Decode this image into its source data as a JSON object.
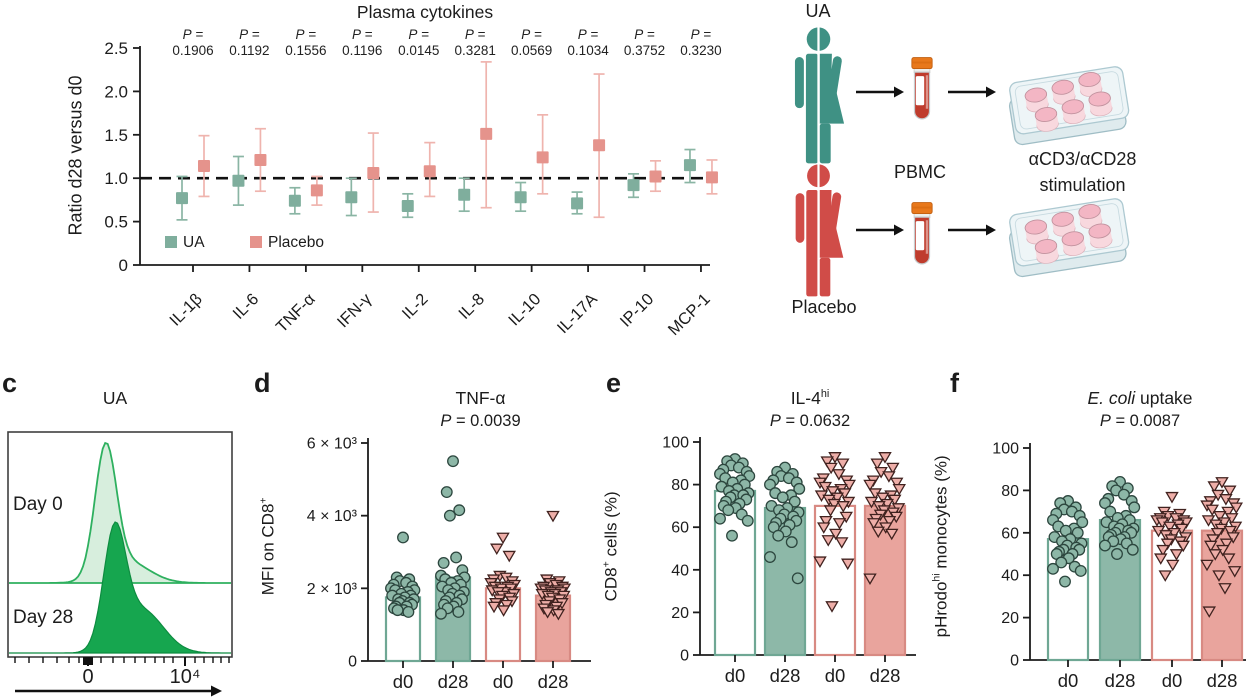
{
  "colors": {
    "ua": "#7fae9d",
    "ua_err": "#8ab5a4",
    "placebo": "#e5938c",
    "placebo_err": "#efb4ae",
    "ua_bar": "#8db8a8",
    "ua_bar_stroke": "#6fa794",
    "pl_bar": "#e9a49d",
    "pl_bar_stroke": "#d88a83",
    "ua_dot": "#8db7a7",
    "ua_dot_stroke": "#2c463e",
    "pl_dot": "#eeaea8",
    "pl_dot_stroke": "#40221f",
    "hist_day0_fill": "#d7eedd",
    "hist_day0_stroke": "#2eb05f",
    "hist_day28_fill": "#16a64f",
    "hist_day28_stroke": "#0d8c40",
    "person_ua": "#3f9184",
    "person_placebo": "#d04c48"
  },
  "panel_b": {
    "ua_label": "UA",
    "pbmc_label": "PBMC",
    "stim_line1": "αCD3/αCD28",
    "stim_line2": "stimulation",
    "placebo_label": "Placebo"
  },
  "chart_data": {
    "plasma": {
      "type": "pointrange",
      "title": "Plasma cytokines",
      "ylabel": "Ratio d28 versus d0",
      "ylim": [
        0,
        2.5
      ],
      "ref_line": 1.0,
      "yticks": {
        "values": [
          0,
          0.5,
          1,
          1.5,
          2,
          2.5
        ],
        "labels": [
          "0",
          "0.5",
          "1.0",
          "1.5",
          "2.0",
          "2.5"
        ]
      },
      "categories": [
        "IL-1β",
        "IL-6",
        "TNF-α",
        "IFN-γ",
        "IL-2",
        "IL-8",
        "IL-10",
        "IL-17A",
        "IP-10",
        "MCP-1"
      ],
      "p_values": [
        "0.1906",
        "0.1192",
        "0.1556",
        "0.1196",
        "0.0145",
        "0.3281",
        "0.0569",
        "0.1034",
        "0.3752",
        "0.3230"
      ],
      "series": [
        {
          "name": "UA",
          "mean": [
            0.77,
            0.97,
            0.74,
            0.78,
            0.68,
            0.81,
            0.78,
            0.71,
            0.92,
            1.15
          ],
          "lo": [
            0.52,
            0.69,
            0.59,
            0.57,
            0.55,
            0.62,
            0.62,
            0.59,
            0.78,
            0.95
          ],
          "hi": [
            1.02,
            1.25,
            0.89,
            1.0,
            0.82,
            1.0,
            0.95,
            0.84,
            1.05,
            1.33
          ]
        },
        {
          "name": "Placebo",
          "mean": [
            1.14,
            1.21,
            0.86,
            1.06,
            1.08,
            1.51,
            1.24,
            1.38,
            1.02,
            1.01
          ],
          "lo": [
            0.79,
            0.85,
            0.69,
            0.61,
            0.79,
            0.66,
            0.82,
            0.55,
            0.85,
            0.82
          ],
          "hi": [
            1.49,
            1.57,
            1.02,
            1.52,
            1.41,
            2.34,
            1.73,
            2.2,
            1.2,
            1.21
          ]
        }
      ]
    },
    "histogram": {
      "type": "histogram-overlay",
      "letter": "c",
      "title": "UA",
      "series": [
        {
          "name": "Day 0"
        },
        {
          "name": "Day 28"
        }
      ],
      "xticks": [
        "0",
        "10⁴"
      ]
    },
    "panels": {
      "d": {
        "type": "bar-scatter",
        "letter": "d",
        "title_pre": "TNF-α",
        "p_symbol": "P",
        "p_rest": " = 0.0039",
        "ylabel_pre": "MFI on CD8",
        "ylabel_sup": "+",
        "ylabel_post": "",
        "ylim": [
          0,
          6000
        ],
        "yticks": {
          "values": [
            0,
            2000,
            4000,
            6000
          ],
          "labels": [
            "0",
            "2 × 10³",
            "4 × 10³",
            "6 × 10³"
          ]
        },
        "categories": [
          "d0",
          "d28",
          "d0",
          "d28"
        ],
        "bars": [
          1750,
          2300,
          2000,
          1800
        ],
        "groups": [
          {
            "group": "UA d0",
            "style": "ua-open",
            "dots": [
              3400,
              2300,
              2250,
              2200,
              2150,
              2100,
              2050,
              2000,
              1950,
              1950,
              1900,
              1850,
              1800,
              1800,
              1750,
              1700,
              1700,
              1650,
              1600,
              1600,
              1550,
              1500,
              1500,
              1450,
              1400,
              1400,
              1350
            ]
          },
          {
            "group": "UA d28",
            "style": "ua-fill",
            "dots": [
              5500,
              4650,
              4150,
              4000,
              2850,
              2700,
              2500,
              2350,
              2300,
              2250,
              2200,
              2150,
              2100,
              2050,
              2000,
              1950,
              1900,
              1850,
              1800,
              1750,
              1700,
              1650,
              1600,
              1550,
              1500,
              1450,
              1350,
              1300
            ]
          },
          {
            "group": "Placebo d0",
            "style": "pl-open",
            "dots": [
              3400,
              3100,
              2900,
              2350,
              2300,
              2250,
              2200,
              2150,
              2100,
              2050,
              2050,
              2000,
              2000,
              1950,
              1900,
              1900,
              1850,
              1800,
              1750,
              1700,
              1650,
              1600,
              1550,
              1500,
              1400
            ]
          },
          {
            "group": "Placebo d28",
            "style": "pl-fill",
            "dots": [
              4000,
              2250,
              2200,
              2150,
              2100,
              2050,
              2050,
              2000,
              2000,
              1950,
              1950,
              1900,
              1900,
              1850,
              1850,
              1800,
              1800,
              1750,
              1700,
              1650,
              1600,
              1550,
              1500,
              1450,
              1400,
              1350,
              1300
            ]
          }
        ]
      },
      "e": {
        "type": "bar-scatter",
        "letter": "e",
        "title_pre": "IL-4",
        "title_sup": "hi",
        "p_symbol": "P",
        "p_rest": " = 0.0632",
        "ylabel_pre": "CD8",
        "ylabel_sup": "+",
        "ylabel_post": " cells (%)",
        "ylim": [
          0,
          100
        ],
        "yticks": {
          "values": [
            0,
            20,
            40,
            60,
            80,
            100
          ],
          "labels": [
            "0",
            "20",
            "40",
            "60",
            "80",
            "100"
          ]
        },
        "categories": [
          "d0",
          "d28",
          "d0",
          "d28"
        ],
        "bars": [
          77,
          69,
          70,
          70
        ],
        "groups": [
          {
            "group": "UA d0",
            "style": "ua-open",
            "dots": [
              92,
              91,
              90,
              89,
              88,
              87,
              86,
              85,
              84,
              83,
              82,
              81,
              80,
              79,
              78,
              77,
              76,
              75,
              75,
              74,
              73,
              72,
              71,
              70,
              69,
              68,
              66,
              64,
              63,
              56
            ]
          },
          {
            "group": "UA d28",
            "style": "ua-fill",
            "dots": [
              88,
              86,
              85,
              84,
              83,
              82,
              81,
              80,
              78,
              76,
              75,
              74,
              72,
              70,
              69,
              68,
              67,
              66,
              65,
              64,
              63,
              62,
              61,
              60,
              58,
              56,
              53,
              46,
              36
            ]
          },
          {
            "group": "Placebo d0",
            "style": "pl-open",
            "dots": [
              93,
              91,
              90,
              88,
              85,
              83,
              82,
              81,
              80,
              79,
              78,
              77,
              76,
              75,
              74,
              73,
              72,
              71,
              70,
              68,
              65,
              63,
              62,
              60,
              57,
              54,
              53,
              44,
              43,
              23
            ]
          },
          {
            "group": "Placebo d28",
            "style": "pl-fill",
            "dots": [
              93,
              90,
              88,
              86,
              84,
              82,
              81,
              80,
              78,
              76,
              75,
              74,
              73,
              72,
              71,
              70,
              69,
              68,
              67,
              66,
              65,
              64,
              63,
              62,
              60,
              58,
              57,
              36
            ]
          }
        ]
      },
      "f": {
        "type": "bar-scatter",
        "letter": "f",
        "title_italic": "E. coli",
        "title_post": " uptake",
        "p_symbol": "P",
        "p_rest": " = 0.0087",
        "ylabel_pre": "pHrodo",
        "ylabel_sup": "hi",
        "ylabel_post": " monocytes (%)",
        "ylim": [
          0,
          100
        ],
        "yticks": {
          "values": [
            0,
            20,
            40,
            60,
            80,
            100
          ],
          "labels": [
            "0",
            "20",
            "40",
            "60",
            "80",
            "100"
          ]
        },
        "categories": [
          "d0",
          "d28",
          "d0",
          "d28"
        ],
        "bars": [
          57,
          66,
          61,
          61
        ],
        "groups": [
          {
            "group": "UA d0",
            "style": "ua-open",
            "dots": [
              75,
              74,
              72,
              71,
              70,
              69,
              68,
              66,
              65,
              63,
              62,
              61,
              60,
              58,
              57,
              56,
              55,
              54,
              53,
              52,
              52,
              51,
              50,
              50,
              48,
              46,
              44,
              43,
              42,
              37
            ]
          },
          {
            "group": "UA d28",
            "style": "ua-fill",
            "dots": [
              84,
              82,
              81,
              80,
              78,
              76,
              75,
              74,
              72,
              70,
              68,
              67,
              66,
              65,
              64,
              63,
              62,
              62,
              61,
              60,
              60,
              59,
              58,
              58,
              57,
              56,
              55,
              54,
              52,
              50
            ]
          },
          {
            "group": "Placebo d0",
            "style": "pl-open",
            "dots": [
              77,
              70,
              69,
              68,
              67,
              67,
              66,
              66,
              65,
              65,
              64,
              63,
              62,
              61,
              60,
              59,
              58,
              57,
              56,
              55,
              54,
              52,
              50,
              48,
              45,
              40
            ]
          },
          {
            "group": "Placebo d28",
            "style": "pl-fill",
            "dots": [
              84,
              82,
              80,
              78,
              76,
              75,
              74,
              73,
              72,
              71,
              70,
              68,
              67,
              66,
              65,
              64,
              63,
              62,
              61,
              60,
              58,
              57,
              55,
              54,
              52,
              50,
              48,
              45,
              42,
              40,
              34,
              23
            ]
          }
        ]
      }
    }
  }
}
